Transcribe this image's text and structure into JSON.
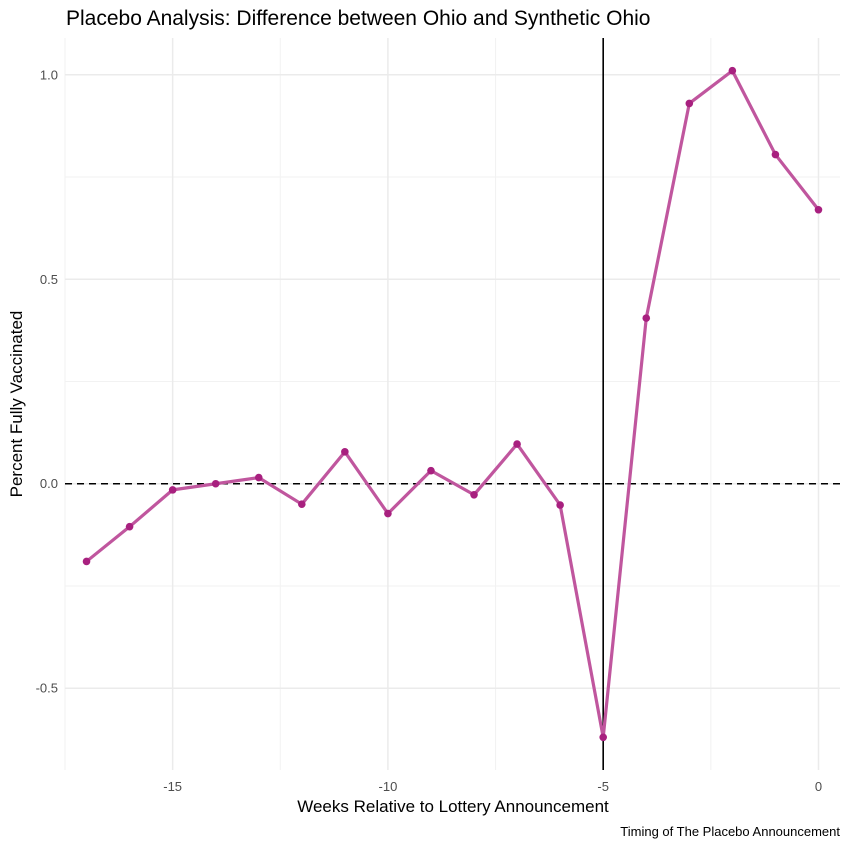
{
  "chart_data": {
    "type": "line",
    "title": "Placebo Analysis:  Difference between Ohio and Synthetic Ohio",
    "xlabel": "Weeks Relative to Lottery Announcement",
    "ylabel": "Percent Fully Vaccinated",
    "caption": "Timing of The Placebo Announcement",
    "xlim": [
      -17.5,
      0.5
    ],
    "ylim": [
      -0.7,
      1.09
    ],
    "x_ticks": [
      -15,
      -10,
      -5,
      0
    ],
    "x_tick_labels": [
      "-15",
      "-10",
      "-5",
      "0"
    ],
    "y_ticks": [
      -0.5,
      0.0,
      0.5,
      1.0
    ],
    "y_tick_labels": [
      "-0.5",
      "0.0",
      "0.5",
      "1.0"
    ],
    "grid": true,
    "series": [
      {
        "color": "#c0569e",
        "point_color": "#a8207f",
        "x": [
          -17,
          -16,
          -15,
          -14,
          -13,
          -12,
          -11,
          -10,
          -9,
          -8,
          -7,
          -6,
          -5,
          -4,
          -3,
          -2,
          -1,
          0
        ],
        "y": [
          -0.19,
          -0.105,
          -0.015,
          0.0,
          0.015,
          -0.05,
          0.078,
          -0.073,
          0.032,
          -0.027,
          0.097,
          -0.052,
          -0.62,
          0.405,
          0.93,
          1.01,
          0.805,
          0.67
        ]
      }
    ],
    "reference_lines": [
      {
        "axis": "y",
        "value": 0,
        "style": "dashed",
        "color": "#000000"
      },
      {
        "axis": "x",
        "value": -5,
        "style": "solid",
        "color": "#000000"
      }
    ]
  }
}
